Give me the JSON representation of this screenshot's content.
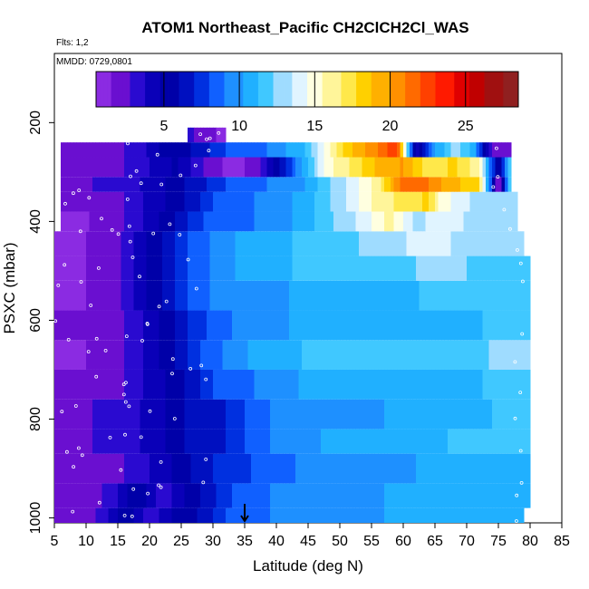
{
  "chart_data": {
    "type": "heatmap",
    "title": "ATOM1 Northeast_Pacific CH2ClCH2Cl_WAS",
    "flights_label": "Flts: 1,2",
    "mmdd_label": "MMDD: 0729,0801",
    "xlabel": "Latitude (deg N)",
    "ylabel": "PSXC (mbar)",
    "xlim": [
      5,
      85
    ],
    "ylim": [
      1010,
      60
    ],
    "y_inverted": true,
    "x_ticks": [
      "5",
      "10",
      "15",
      "20",
      "25",
      "30",
      "35",
      "40",
      "45",
      "50",
      "55",
      "60",
      "65",
      "70",
      "75",
      "80",
      "85"
    ],
    "y_ticks": [
      "200",
      "400",
      "600",
      "800",
      "1000"
    ],
    "colorbar": {
      "range": [
        0.5,
        28.5
      ],
      "ticks": [
        "5",
        "10",
        "15",
        "20",
        "25"
      ],
      "colors": [
        "#8b2be2",
        "#6a0fd0",
        "#2a0ad0",
        "#0a00b8",
        "#0000a8",
        "#0010c0",
        "#0030e0",
        "#1060ff",
        "#1e90ff",
        "#20b0ff",
        "#40c8ff",
        "#9fdcff",
        "#e0f4ff",
        "#ffffe0",
        "#fff59a",
        "#ffe84a",
        "#ffd000",
        "#ffb000",
        "#ff9000",
        "#ff6a00",
        "#ff4000",
        "#ff1a00",
        "#e00000",
        "#c00000",
        "#a01010",
        "#902020"
      ]
    },
    "marker_latitude": 35,
    "layers": [
      {
        "p": [
          980,
          1010
        ],
        "x": [
          5,
          79
        ],
        "v": [
          [
            5,
            2
          ],
          [
            8,
            2
          ],
          [
            13,
            3
          ],
          [
            16,
            6
          ],
          [
            20,
            3
          ],
          [
            24,
            5
          ],
          [
            28,
            6
          ],
          [
            32,
            8
          ],
          [
            38,
            9
          ],
          [
            45,
            10
          ],
          [
            55,
            10
          ],
          [
            65,
            11
          ],
          [
            72,
            11
          ],
          [
            79,
            11
          ]
        ]
      },
      {
        "p": [
          930,
          980
        ],
        "x": [
          5,
          80
        ],
        "v": [
          [
            5,
            2
          ],
          [
            10,
            2
          ],
          [
            14,
            3
          ],
          [
            18,
            6
          ],
          [
            22,
            3
          ],
          [
            28,
            6
          ],
          [
            33,
            8
          ],
          [
            38,
            9
          ],
          [
            45,
            10
          ],
          [
            55,
            10
          ],
          [
            65,
            11
          ],
          [
            72,
            11
          ],
          [
            80,
            11
          ]
        ]
      },
      {
        "p": [
          870,
          930
        ],
        "x": [
          5,
          80
        ],
        "v": [
          [
            5,
            2
          ],
          [
            12,
            2
          ],
          [
            18,
            3
          ],
          [
            24,
            5
          ],
          [
            30,
            7
          ],
          [
            36,
            8
          ],
          [
            42,
            9
          ],
          [
            50,
            10
          ],
          [
            60,
            10
          ],
          [
            70,
            11
          ],
          [
            80,
            11
          ]
        ]
      },
      {
        "p": [
          820,
          870
        ],
        "x": [
          5,
          80
        ],
        "v": [
          [
            5,
            2
          ],
          [
            14,
            3
          ],
          [
            20,
            4
          ],
          [
            26,
            6
          ],
          [
            32,
            7
          ],
          [
            38,
            9
          ],
          [
            45,
            10
          ],
          [
            55,
            11
          ],
          [
            65,
            11
          ],
          [
            72,
            12
          ],
          [
            80,
            12
          ]
        ]
      },
      {
        "p": [
          760,
          820
        ],
        "x": [
          5,
          80
        ],
        "v": [
          [
            5,
            2
          ],
          [
            14,
            3
          ],
          [
            20,
            4
          ],
          [
            26,
            6
          ],
          [
            32,
            7
          ],
          [
            38,
            9
          ],
          [
            45,
            10
          ],
          [
            55,
            10
          ],
          [
            65,
            11
          ],
          [
            72,
            11
          ],
          [
            80,
            12
          ]
        ]
      },
      {
        "p": [
          700,
          760
        ],
        "x": [
          5,
          80
        ],
        "v": [
          [
            5,
            2
          ],
          [
            14,
            2
          ],
          [
            20,
            4
          ],
          [
            26,
            6
          ],
          [
            30,
            8
          ],
          [
            36,
            9
          ],
          [
            42,
            10
          ],
          [
            50,
            11
          ],
          [
            60,
            11
          ],
          [
            70,
            11
          ],
          [
            80,
            12
          ]
        ]
      },
      {
        "p": [
          640,
          700
        ],
        "x": [
          5,
          80
        ],
        "v": [
          [
            5,
            1
          ],
          [
            14,
            2
          ],
          [
            20,
            4
          ],
          [
            24,
            6
          ],
          [
            28,
            8
          ],
          [
            34,
            10
          ],
          [
            42,
            11
          ],
          [
            50,
            12
          ],
          [
            60,
            12
          ],
          [
            70,
            12
          ],
          [
            80,
            13
          ]
        ]
      },
      {
        "p": [
          580,
          640
        ],
        "x": [
          5,
          80
        ],
        "v": [
          [
            5,
            2
          ],
          [
            14,
            2
          ],
          [
            20,
            4
          ],
          [
            26,
            7
          ],
          [
            32,
            9
          ],
          [
            40,
            10
          ],
          [
            50,
            11
          ],
          [
            60,
            11
          ],
          [
            70,
            11
          ],
          [
            80,
            12
          ]
        ]
      },
      {
        "p": [
          520,
          580
        ],
        "x": [
          5,
          80
        ],
        "v": [
          [
            5,
            1
          ],
          [
            14,
            2
          ],
          [
            20,
            5
          ],
          [
            26,
            8
          ],
          [
            32,
            10
          ],
          [
            40,
            10
          ],
          [
            50,
            11
          ],
          [
            60,
            11
          ],
          [
            70,
            12
          ],
          [
            80,
            12
          ]
        ]
      },
      {
        "p": [
          470,
          520
        ],
        "x": [
          5,
          80
        ],
        "v": [
          [
            5,
            1
          ],
          [
            14,
            2
          ],
          [
            20,
            5
          ],
          [
            26,
            8
          ],
          [
            32,
            10
          ],
          [
            40,
            11
          ],
          [
            50,
            12
          ],
          [
            60,
            12
          ],
          [
            66,
            13
          ],
          [
            72,
            12
          ],
          [
            80,
            12
          ]
        ]
      },
      {
        "p": [
          420,
          470
        ],
        "x": [
          5,
          79
        ],
        "v": [
          [
            5,
            1
          ],
          [
            14,
            2
          ],
          [
            20,
            5
          ],
          [
            26,
            8
          ],
          [
            32,
            10
          ],
          [
            40,
            11
          ],
          [
            50,
            12
          ],
          [
            58,
            13
          ],
          [
            64,
            14
          ],
          [
            70,
            13
          ],
          [
            79,
            13
          ]
        ]
      },
      {
        "p": [
          380,
          420
        ],
        "x": [
          6,
          78
        ],
        "v": [
          [
            6,
            1
          ],
          [
            14,
            2
          ],
          [
            20,
            4
          ],
          [
            28,
            8
          ],
          [
            36,
            9
          ],
          [
            42,
            10
          ],
          [
            48,
            12
          ],
          [
            54,
            14
          ],
          [
            58,
            16
          ],
          [
            62,
            13
          ],
          [
            66,
            14
          ],
          [
            72,
            13
          ],
          [
            78,
            13
          ]
        ]
      },
      {
        "p": [
          340,
          380
        ],
        "x": [
          6,
          78
        ],
        "v": [
          [
            6,
            2
          ],
          [
            14,
            2
          ],
          [
            20,
            4
          ],
          [
            26,
            6
          ],
          [
            30,
            8
          ],
          [
            36,
            9
          ],
          [
            42,
            10
          ],
          [
            48,
            12
          ],
          [
            52,
            14
          ],
          [
            56,
            16
          ],
          [
            60,
            17
          ],
          [
            64,
            18
          ],
          [
            66,
            15
          ],
          [
            72,
            13
          ],
          [
            78,
            13
          ]
        ]
      },
      {
        "p": [
          310,
          340
        ],
        "x": [
          6,
          77
        ],
        "v": [
          [
            6,
            2
          ],
          [
            14,
            3
          ],
          [
            20,
            4
          ],
          [
            26,
            6
          ],
          [
            32,
            8
          ],
          [
            38,
            9
          ],
          [
            44,
            10
          ],
          [
            50,
            13
          ],
          [
            56,
            16
          ],
          [
            60,
            22
          ],
          [
            64,
            21
          ],
          [
            68,
            19
          ],
          [
            72,
            18
          ],
          [
            75,
            1
          ],
          [
            77,
            13
          ]
        ]
      },
      {
        "p": [
          270,
          310
        ],
        "x": [
          6,
          77
        ],
        "v": [
          [
            6,
            2
          ],
          [
            12,
            2
          ],
          [
            18,
            3
          ],
          [
            24,
            5
          ],
          [
            30,
            2
          ],
          [
            34,
            1
          ],
          [
            38,
            3
          ],
          [
            44,
            10
          ],
          [
            48,
            15
          ],
          [
            52,
            17
          ],
          [
            56,
            19
          ],
          [
            60,
            20
          ],
          [
            64,
            17
          ],
          [
            68,
            18
          ],
          [
            72,
            16
          ],
          [
            75,
            4
          ],
          [
            77,
            13
          ]
        ]
      },
      {
        "p": [
          240,
          270
        ],
        "x": [
          6,
          77
        ],
        "v": [
          [
            6,
            2
          ],
          [
            12,
            2
          ],
          [
            18,
            3
          ],
          [
            22,
            5
          ],
          [
            27,
            6
          ],
          [
            32,
            8
          ],
          [
            38,
            9
          ],
          [
            44,
            11
          ],
          [
            48,
            15
          ],
          [
            52,
            19
          ],
          [
            56,
            21
          ],
          [
            59,
            23
          ],
          [
            62,
            4
          ],
          [
            65,
            10
          ],
          [
            68,
            13
          ],
          [
            71,
            11
          ],
          [
            74,
            2
          ],
          [
            77,
            2
          ]
        ]
      },
      {
        "p": [
          210,
          240
        ],
        "x": [
          26,
          32
        ],
        "v": [
          [
            26,
            3
          ],
          [
            29,
            2
          ],
          [
            32,
            1
          ]
        ]
      }
    ]
  }
}
